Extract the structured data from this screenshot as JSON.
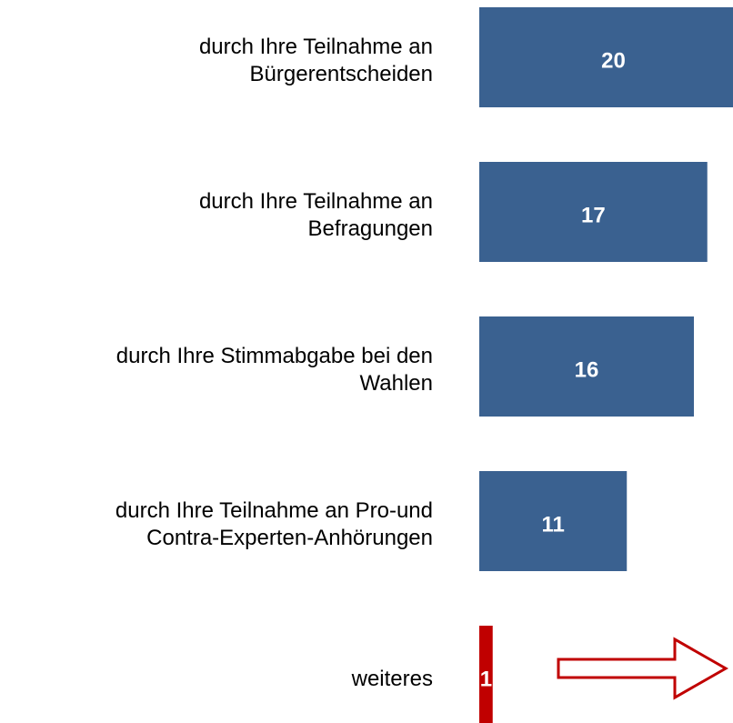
{
  "chart_data": {
    "type": "barh",
    "categories": [
      [
        "durch Ihre Teilnahme an",
        "Bürgerentscheiden"
      ],
      [
        "durch Ihre Teilnahme an",
        "Befragungen"
      ],
      [
        "durch Ihre Stimmabgabe bei den",
        "Wahlen"
      ],
      [
        "durch Ihre Teilnahme an Pro-und",
        "Contra-Experten-Anhörungen"
      ],
      [
        "weiteres"
      ]
    ],
    "values": [
      20,
      17,
      16,
      11,
      1
    ],
    "colors": [
      "#3a6190",
      "#3a6190",
      "#3a6190",
      "#3a6190",
      "#c00000"
    ]
  }
}
